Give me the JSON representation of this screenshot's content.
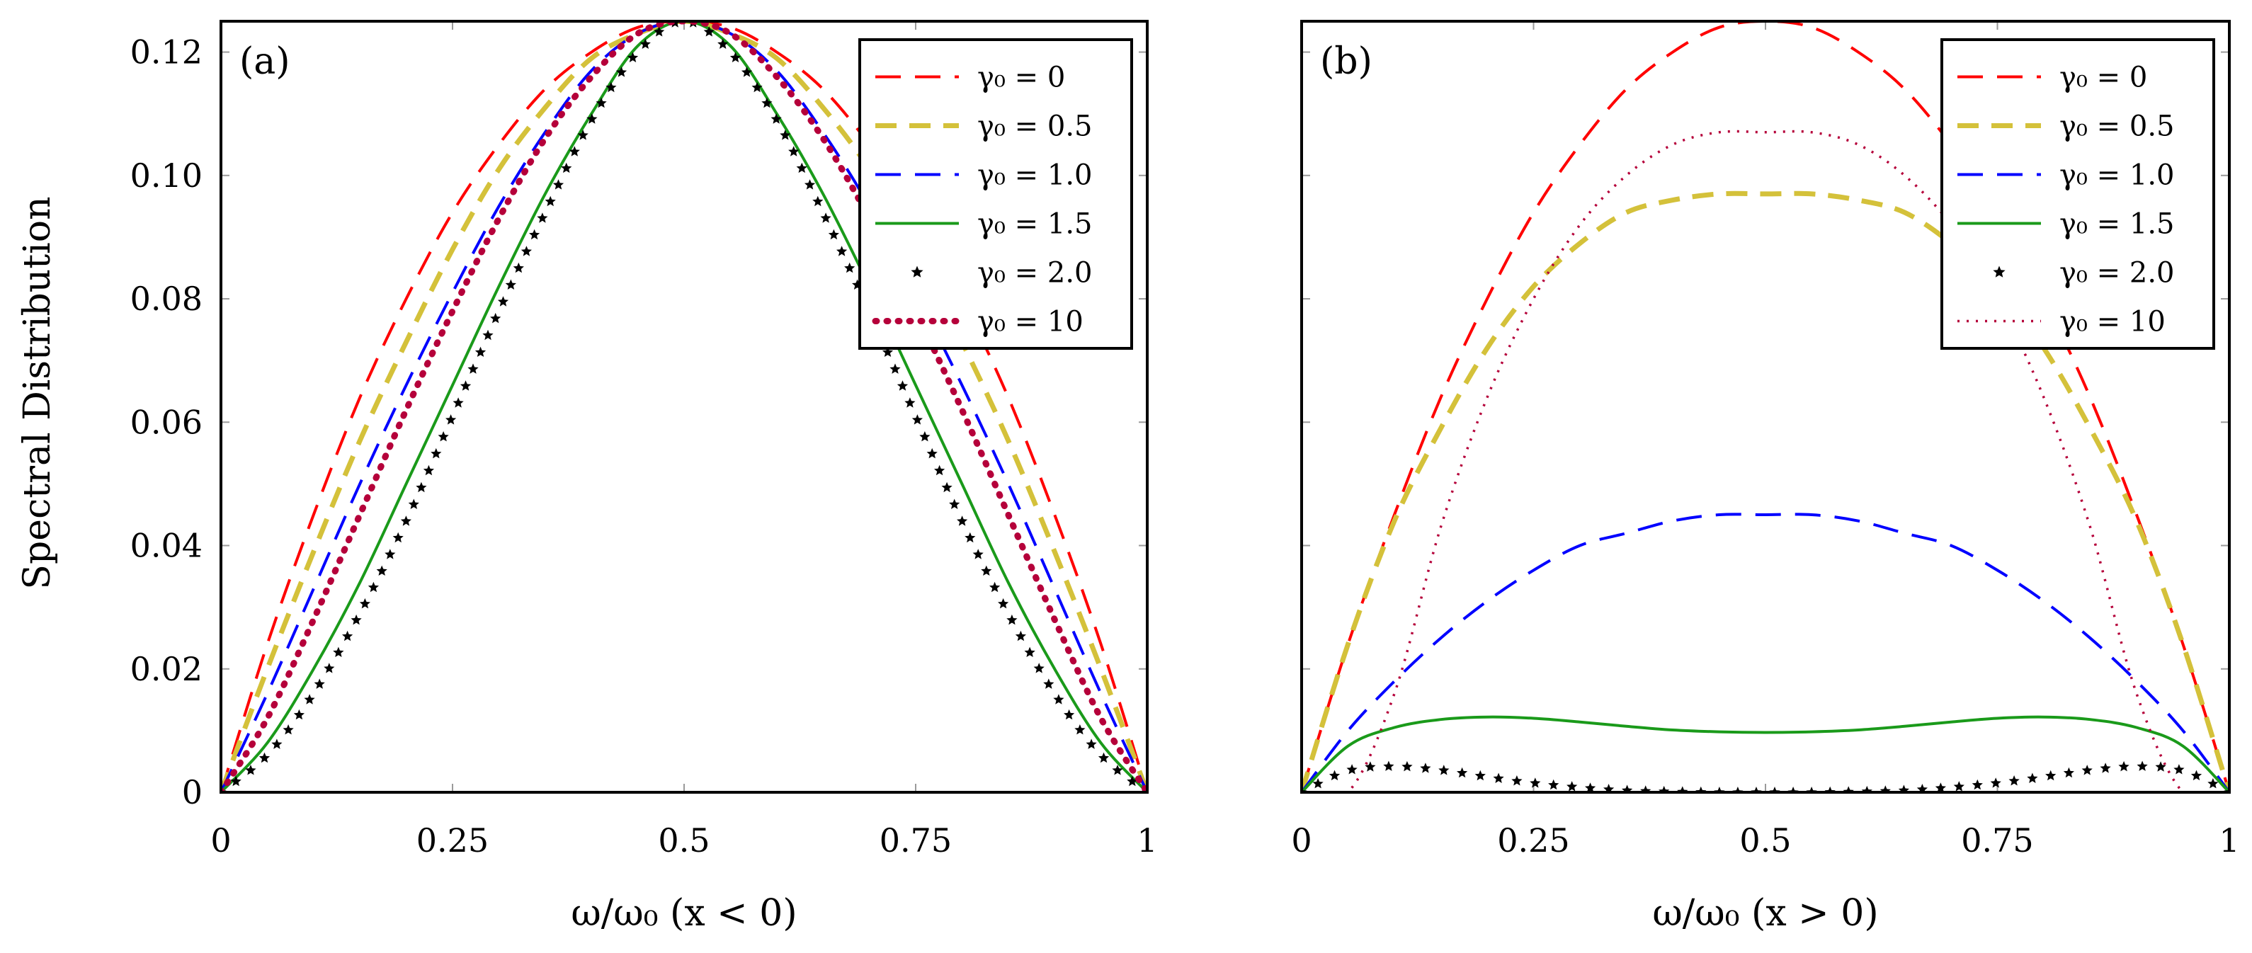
{
  "figure": {
    "ylabel": "Spectral Distribution"
  },
  "chart_data": [
    {
      "type": "line",
      "panel_label": "(a)",
      "xlabel": "ω/ω₀ (x < 0)",
      "ylabel": "Spectral Distribution",
      "xlim": [
        0,
        1
      ],
      "ylim": [
        0,
        0.125
      ],
      "x_ticks": [
        "0",
        "0.25",
        "0.5",
        "0.75",
        "1"
      ],
      "y_ticks": [
        "0",
        "0.02",
        "0.04",
        "0.06",
        "0.08",
        "0.10",
        "0.12"
      ],
      "grid": false,
      "legend_position": "top-right",
      "x": [
        0,
        0.05,
        0.1,
        0.15,
        0.2,
        0.25,
        0.3,
        0.35,
        0.4,
        0.45,
        0.5,
        0.55,
        0.6,
        0.65,
        0.7,
        0.75,
        0.8,
        0.85,
        0.9,
        0.95,
        1
      ],
      "series": [
        {
          "name": "γ₀ = 0",
          "color": "#ff0000",
          "style": "dashed",
          "values": [
            0,
            0.024,
            0.045,
            0.064,
            0.08,
            0.094,
            0.105,
            0.114,
            0.12,
            0.124,
            0.125,
            0.124,
            0.12,
            0.114,
            0.105,
            0.094,
            0.08,
            0.064,
            0.045,
            0.024,
            0
          ]
        },
        {
          "name": "γ₀ = 0.5",
          "color": "#d4c13a",
          "style": "thick-dashed",
          "values": [
            0,
            0.02,
            0.039,
            0.057,
            0.073,
            0.088,
            0.101,
            0.111,
            0.119,
            0.123,
            0.125,
            0.123,
            0.119,
            0.111,
            0.101,
            0.088,
            0.073,
            0.057,
            0.039,
            0.02,
            0
          ]
        },
        {
          "name": "γ₀ = 1.0",
          "color": "#0000ff",
          "style": "dashed",
          "values": [
            0,
            0.016,
            0.033,
            0.05,
            0.066,
            0.081,
            0.095,
            0.107,
            0.117,
            0.123,
            0.125,
            0.123,
            0.117,
            0.107,
            0.095,
            0.081,
            0.066,
            0.05,
            0.033,
            0.016,
            0
          ]
        },
        {
          "name": "γ₀ = 1.5",
          "color": "#1a9a1a",
          "style": "solid",
          "values": [
            0,
            0.008,
            0.02,
            0.034,
            0.05,
            0.066,
            0.082,
            0.097,
            0.11,
            0.121,
            0.125,
            0.121,
            0.11,
            0.097,
            0.082,
            0.066,
            0.05,
            0.034,
            0.02,
            0.008,
            0
          ]
        },
        {
          "name": "γ₀ = 2.0",
          "color": "#000000",
          "style": "stars",
          "values": [
            0,
            0.006,
            0.016,
            0.029,
            0.044,
            0.061,
            0.078,
            0.094,
            0.109,
            0.12,
            0.125,
            0.12,
            0.109,
            0.094,
            0.078,
            0.061,
            0.044,
            0.029,
            0.016,
            0.006,
            0
          ]
        },
        {
          "name": "γ₀ = 10",
          "color": "#b5003a",
          "style": "thick-dotted",
          "values": [
            0,
            0.012,
            0.028,
            0.045,
            0.062,
            0.078,
            0.093,
            0.106,
            0.116,
            0.123,
            0.125,
            0.123,
            0.116,
            0.106,
            0.093,
            0.078,
            0.062,
            0.045,
            0.028,
            0.012,
            0
          ]
        }
      ]
    },
    {
      "type": "line",
      "panel_label": "(b)",
      "xlabel": "ω/ω₀ (x > 0)",
      "xlim": [
        0,
        1
      ],
      "ylim": [
        0,
        0.125
      ],
      "x_ticks": [
        "0",
        "0.25",
        "0.5",
        "0.75",
        "1"
      ],
      "grid": false,
      "legend_position": "top-right",
      "x": [
        0,
        0.05,
        0.1,
        0.15,
        0.2,
        0.25,
        0.3,
        0.35,
        0.4,
        0.45,
        0.5,
        0.55,
        0.6,
        0.65,
        0.7,
        0.75,
        0.8,
        0.85,
        0.9,
        0.95,
        1
      ],
      "series": [
        {
          "name": "γ₀ = 0",
          "color": "#ff0000",
          "style": "dashed",
          "values": [
            0,
            0.024,
            0.045,
            0.064,
            0.08,
            0.094,
            0.105,
            0.114,
            0.12,
            0.124,
            0.125,
            0.124,
            0.12,
            0.114,
            0.105,
            0.094,
            0.08,
            0.064,
            0.045,
            0.024,
            0
          ]
        },
        {
          "name": "γ₀ = 0.5",
          "color": "#d4c13a",
          "style": "thick-dashed",
          "values": [
            0,
            0.024,
            0.044,
            0.059,
            0.072,
            0.082,
            0.089,
            0.094,
            0.096,
            0.097,
            0.097,
            0.097,
            0.096,
            0.094,
            0.089,
            0.082,
            0.072,
            0.059,
            0.044,
            0.024,
            0
          ]
        },
        {
          "name": "γ₀ = 1.0",
          "color": "#0000ff",
          "style": "dashed",
          "values": [
            0,
            0.01,
            0.018,
            0.025,
            0.031,
            0.036,
            0.04,
            0.042,
            0.044,
            0.045,
            0.045,
            0.045,
            0.044,
            0.042,
            0.04,
            0.036,
            0.031,
            0.025,
            0.018,
            0.01,
            0
          ]
        },
        {
          "name": "γ₀ = 1.5",
          "color": "#1a9a1a",
          "style": "solid",
          "values": [
            0,
            0.0075,
            0.0105,
            0.0118,
            0.0122,
            0.012,
            0.0114,
            0.0107,
            0.0101,
            0.0098,
            0.0097,
            0.0098,
            0.0101,
            0.0107,
            0.0114,
            0.012,
            0.0122,
            0.0118,
            0.0105,
            0.0075,
            0
          ]
        },
        {
          "name": "γ₀ = 2.0",
          "color": "#000000",
          "style": "stars",
          "values": [
            0,
            0.0035,
            0.0042,
            0.0036,
            0.0025,
            0.0015,
            0.0008,
            0.0003,
            0.0001,
            0,
            0,
            0,
            0.0001,
            0.0003,
            0.0008,
            0.0015,
            0.0025,
            0.0036,
            0.0042,
            0.0035,
            0
          ]
        },
        {
          "name": "γ₀ = 10",
          "color": "#b5003a",
          "style": "dotted",
          "values": [
            0,
            0.0,
            0.016,
            0.043,
            0.064,
            0.08,
            0.092,
            0.1,
            0.105,
            0.107,
            0.107,
            0.107,
            0.105,
            0.1,
            0.092,
            0.08,
            0.064,
            0.043,
            0.016,
            0.0,
            0
          ]
        }
      ]
    }
  ]
}
